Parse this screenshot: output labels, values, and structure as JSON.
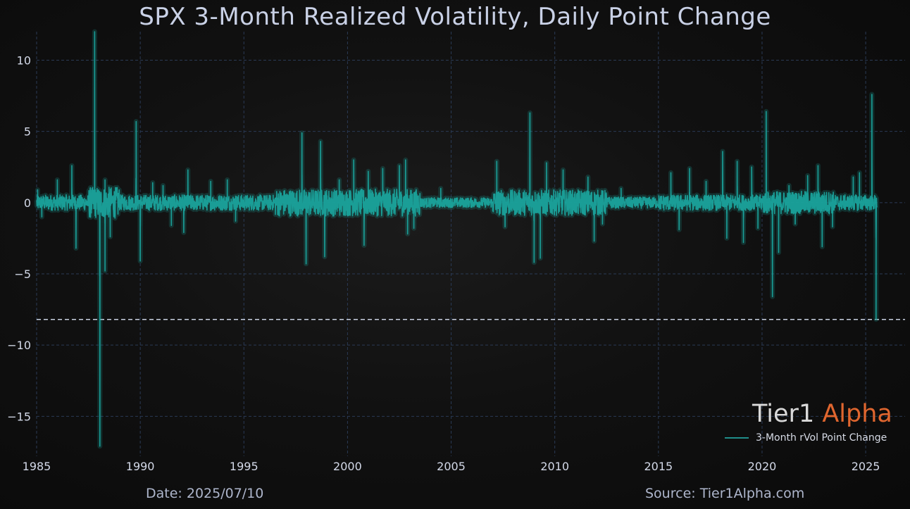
{
  "title": "SPX 3-Month Realized Volatility, Daily Point Change",
  "footer": {
    "date": "Date: 2025/07/10",
    "source": "Source: Tier1Alpha.com"
  },
  "brand": {
    "part1": "Tier1",
    "part2": "Alpha",
    "part2_color": "#e0662f"
  },
  "legend": {
    "label": "3-Month rVol Point Change",
    "color": "#1f8e8a"
  },
  "colors": {
    "line": "#1aa39c",
    "glow": "#1aa39c",
    "grid": "#2a3a55",
    "reference_line": "#c8d0e0",
    "background": "#0b0b0b"
  },
  "chart_data": {
    "type": "line",
    "title": "SPX 3-Month Realized Volatility, Daily Point Change",
    "xlabel": "",
    "ylabel": "",
    "xlim": [
      1985,
      2026.9
    ],
    "ylim": [
      -17.8,
      12
    ],
    "x_ticks": [
      "1985",
      "1990",
      "1995",
      "2000",
      "2005",
      "2010",
      "2015",
      "2020",
      "2025"
    ],
    "y_ticks": [
      10,
      5,
      0,
      -5,
      -10,
      -15
    ],
    "y_tick_labels": [
      "10",
      "5",
      "0",
      "−5",
      "−10",
      "−15"
    ],
    "grid": true,
    "reference_line": {
      "y": -8.2,
      "style": "dashed"
    },
    "legend_position": "bottom-right",
    "series": [
      {
        "name": "3-Month rVol Point Change",
        "spikes": [
          [
            1985.05,
            0.9
          ],
          [
            1985.25,
            -1.0
          ],
          [
            1986.0,
            1.6
          ],
          [
            1986.7,
            2.6
          ],
          [
            1986.9,
            -3.2
          ],
          [
            1987.8,
            12
          ],
          [
            1988.05,
            -17.1
          ],
          [
            1988.3,
            1.6
          ],
          [
            1988.3,
            -4.8
          ],
          [
            1988.55,
            -2.4
          ],
          [
            1989.8,
            5.7
          ],
          [
            1990.0,
            -4.1
          ],
          [
            1990.6,
            1.4
          ],
          [
            1991.1,
            1.2
          ],
          [
            1991.5,
            -1.6
          ],
          [
            1992.3,
            2.3
          ],
          [
            1992.1,
            -2.1
          ],
          [
            1993.4,
            1.5
          ],
          [
            1994.2,
            1.6
          ],
          [
            1994.6,
            -1.3
          ],
          [
            1997.8,
            4.9
          ],
          [
            1998.0,
            -4.3
          ],
          [
            1998.7,
            4.3
          ],
          [
            1998.9,
            -3.8
          ],
          [
            1999.6,
            1.6
          ],
          [
            2000.3,
            3.0
          ],
          [
            2000.8,
            -3.0
          ],
          [
            2001.0,
            2.2
          ],
          [
            2001.7,
            2.4
          ],
          [
            2002.5,
            2.6
          ],
          [
            2002.8,
            3.0
          ],
          [
            2002.9,
            -2.2
          ],
          [
            2003.2,
            -1.8
          ],
          [
            2004.5,
            1.0
          ],
          [
            2007.2,
            2.9
          ],
          [
            2007.6,
            -1.7
          ],
          [
            2008.8,
            6.3
          ],
          [
            2009.0,
            -4.2
          ],
          [
            2009.3,
            -3.9
          ],
          [
            2009.6,
            2.8
          ],
          [
            2010.4,
            2.3
          ],
          [
            2011.6,
            1.8
          ],
          [
            2011.9,
            -2.7
          ],
          [
            2012.3,
            -1.5
          ],
          [
            2013.2,
            1.0
          ],
          [
            2015.6,
            2.1
          ],
          [
            2016.0,
            -1.9
          ],
          [
            2016.5,
            2.4
          ],
          [
            2017.3,
            1.5
          ],
          [
            2018.1,
            3.6
          ],
          [
            2018.3,
            -2.5
          ],
          [
            2018.8,
            2.9
          ],
          [
            2019.1,
            -2.8
          ],
          [
            2019.5,
            2.5
          ],
          [
            2019.8,
            -1.8
          ],
          [
            2020.2,
            6.4
          ],
          [
            2020.5,
            -6.6
          ],
          [
            2020.8,
            -3.5
          ],
          [
            2021.3,
            1.2
          ],
          [
            2021.6,
            -1.5
          ],
          [
            2022.2,
            1.9
          ],
          [
            2022.7,
            2.6
          ],
          [
            2022.9,
            -3.1
          ],
          [
            2023.4,
            -1.7
          ],
          [
            2024.4,
            1.8
          ],
          [
            2024.7,
            2.1
          ],
          [
            2025.3,
            7.6
          ],
          [
            2025.5,
            -8.2
          ]
        ]
      }
    ]
  }
}
